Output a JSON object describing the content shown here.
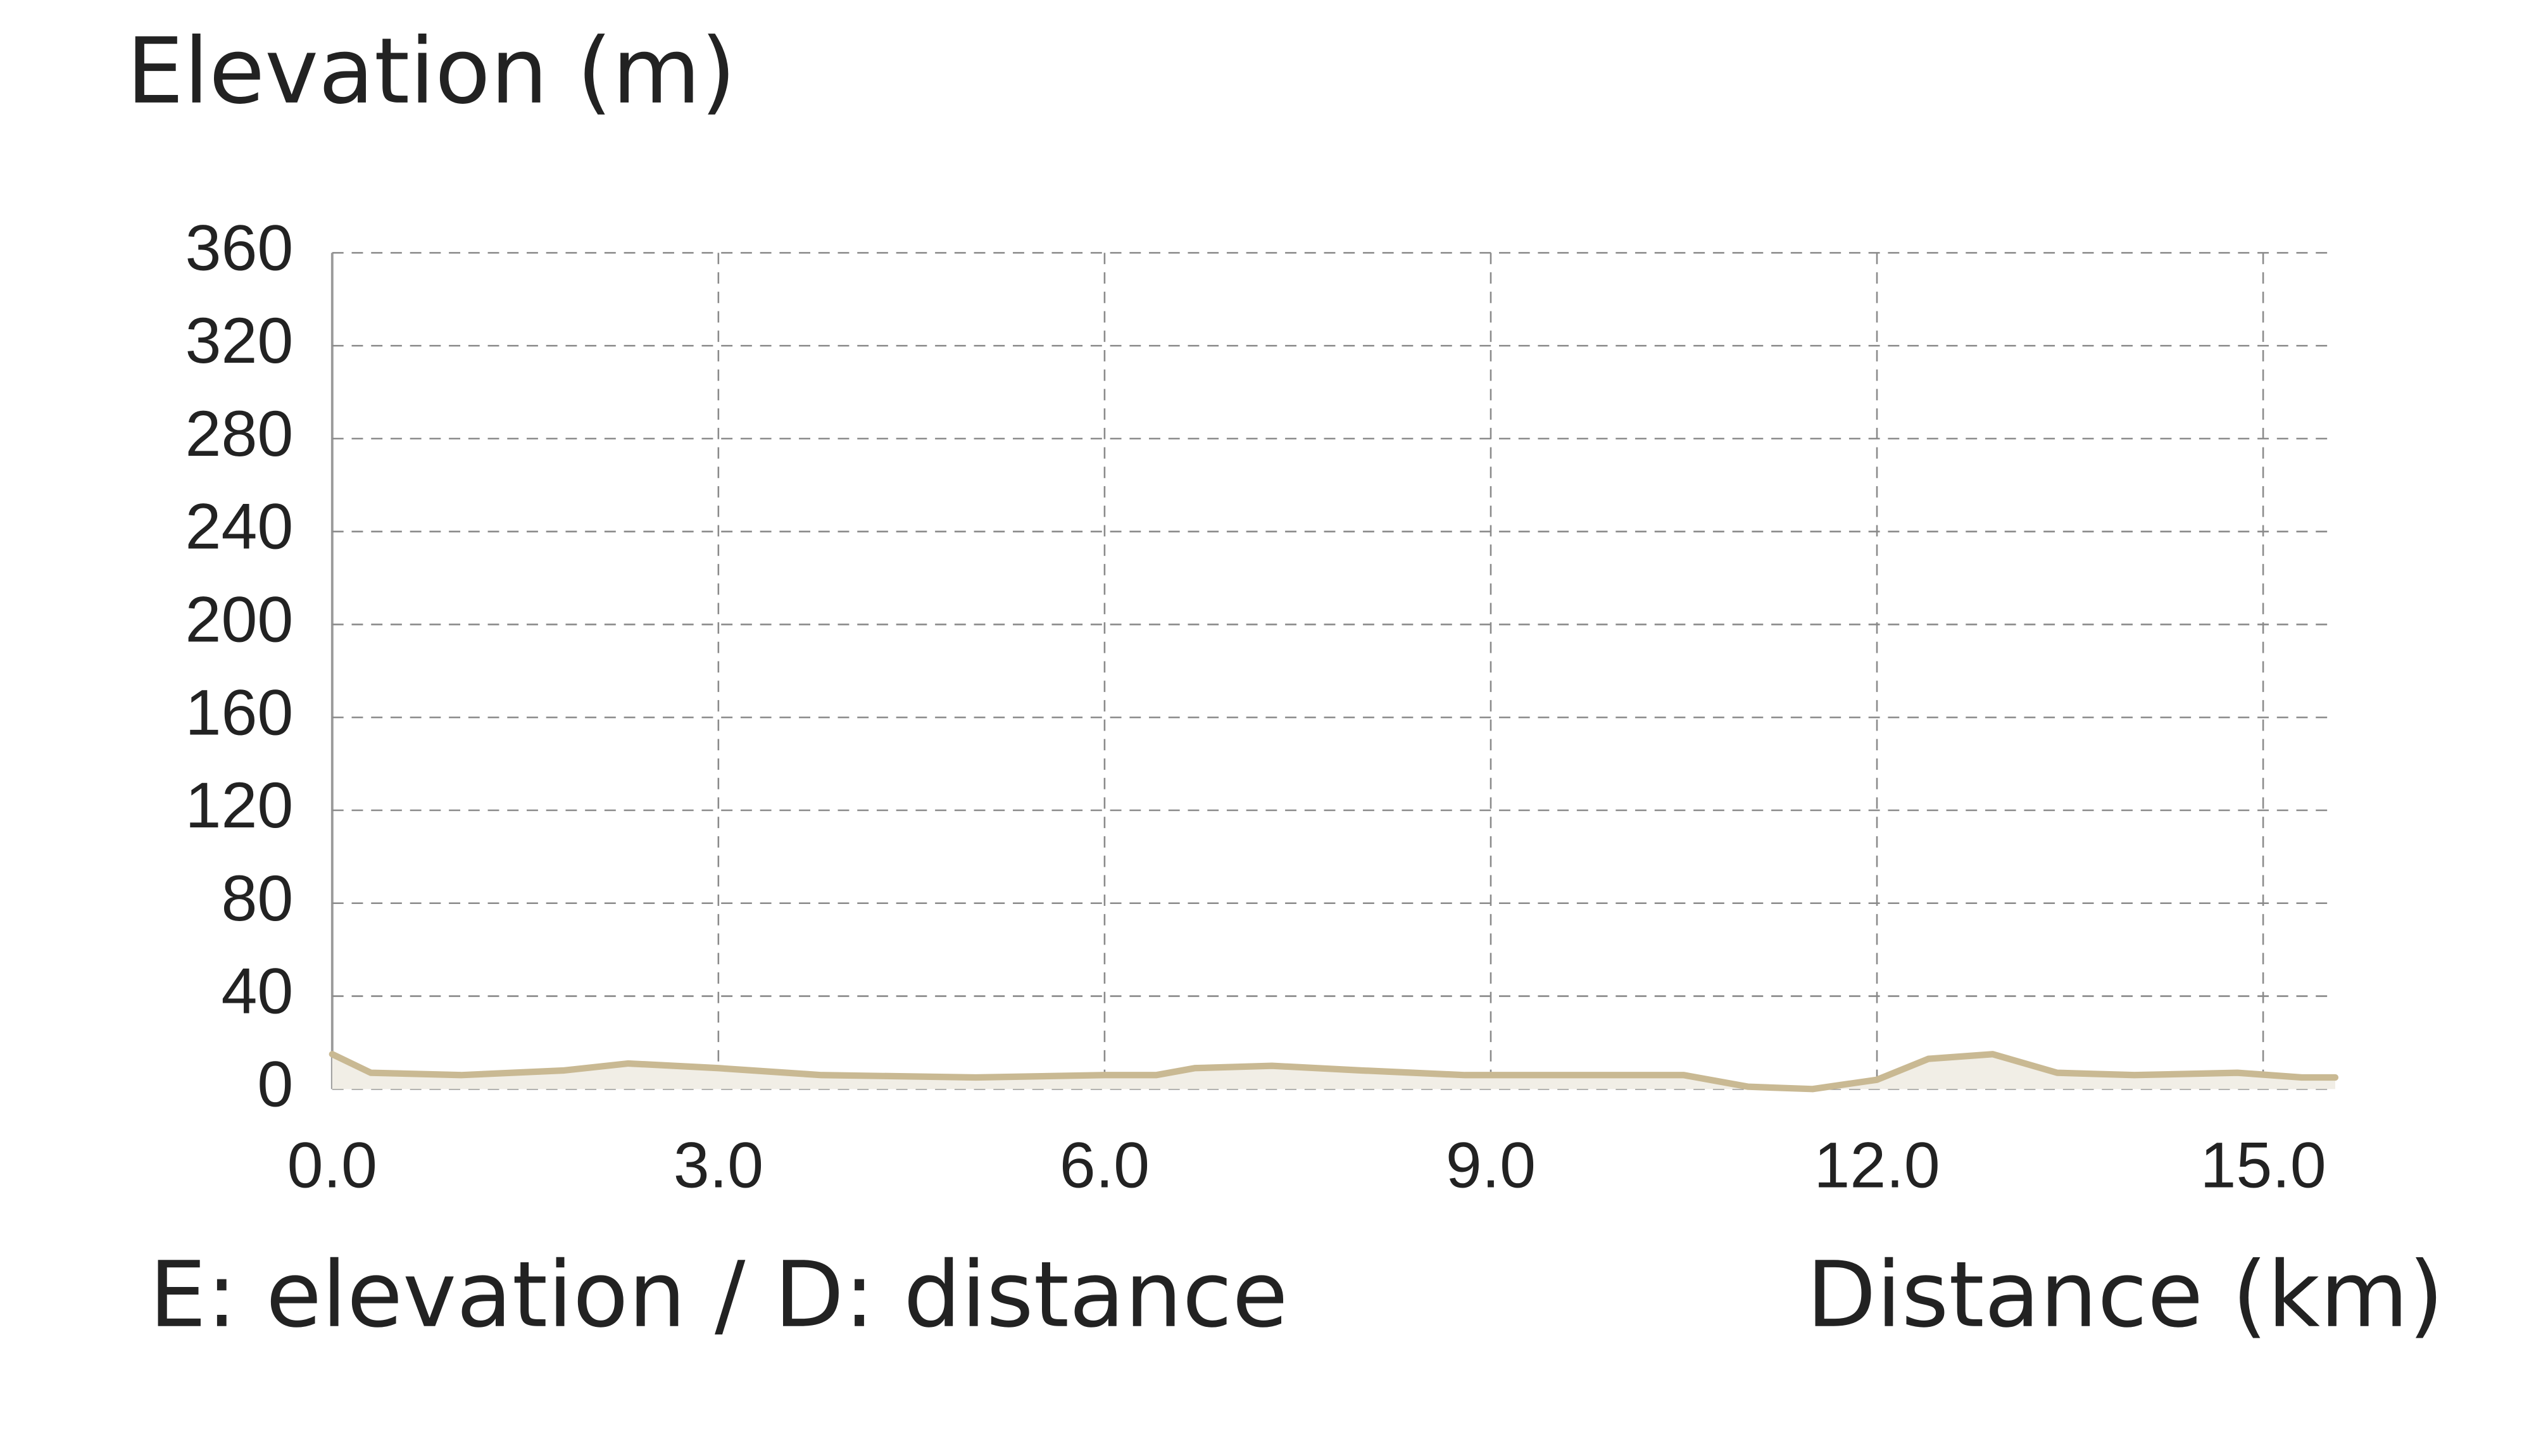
{
  "chart_data": {
    "type": "area",
    "title": "Elevation (m)",
    "x_label": "Distance (km)",
    "note": "E: elevation / D: distance",
    "x": [
      0.0,
      0.3,
      1.0,
      1.8,
      2.3,
      3.0,
      3.8,
      5.0,
      6.0,
      6.4,
      6.7,
      7.3,
      8.0,
      8.8,
      9.2,
      10.5,
      11.0,
      11.5,
      12.0,
      12.4,
      12.9,
      13.4,
      14.0,
      14.8,
      15.3,
      15.56
    ],
    "values": [
      15,
      7,
      6,
      8,
      11,
      9,
      6,
      5,
      6,
      6,
      9,
      10,
      8,
      6,
      6,
      6,
      1,
      0,
      4,
      13,
      15,
      7,
      6,
      7,
      5,
      5
    ],
    "color": "#c9b993",
    "fill_color": "#f1eee6",
    "xlim": [
      0,
      15.56
    ],
    "ylim": [
      0,
      360
    ],
    "xticks": [
      {
        "value": 0,
        "label": "0.0"
      },
      {
        "value": 3,
        "label": "3.0"
      },
      {
        "value": 6,
        "label": "6.0"
      },
      {
        "value": 9,
        "label": "9.0"
      },
      {
        "value": 12,
        "label": "12.0"
      },
      {
        "value": 15,
        "label": "15.0"
      }
    ],
    "yticks": [
      0,
      40,
      80,
      120,
      160,
      200,
      240,
      280,
      320,
      360
    ],
    "grid": true
  }
}
